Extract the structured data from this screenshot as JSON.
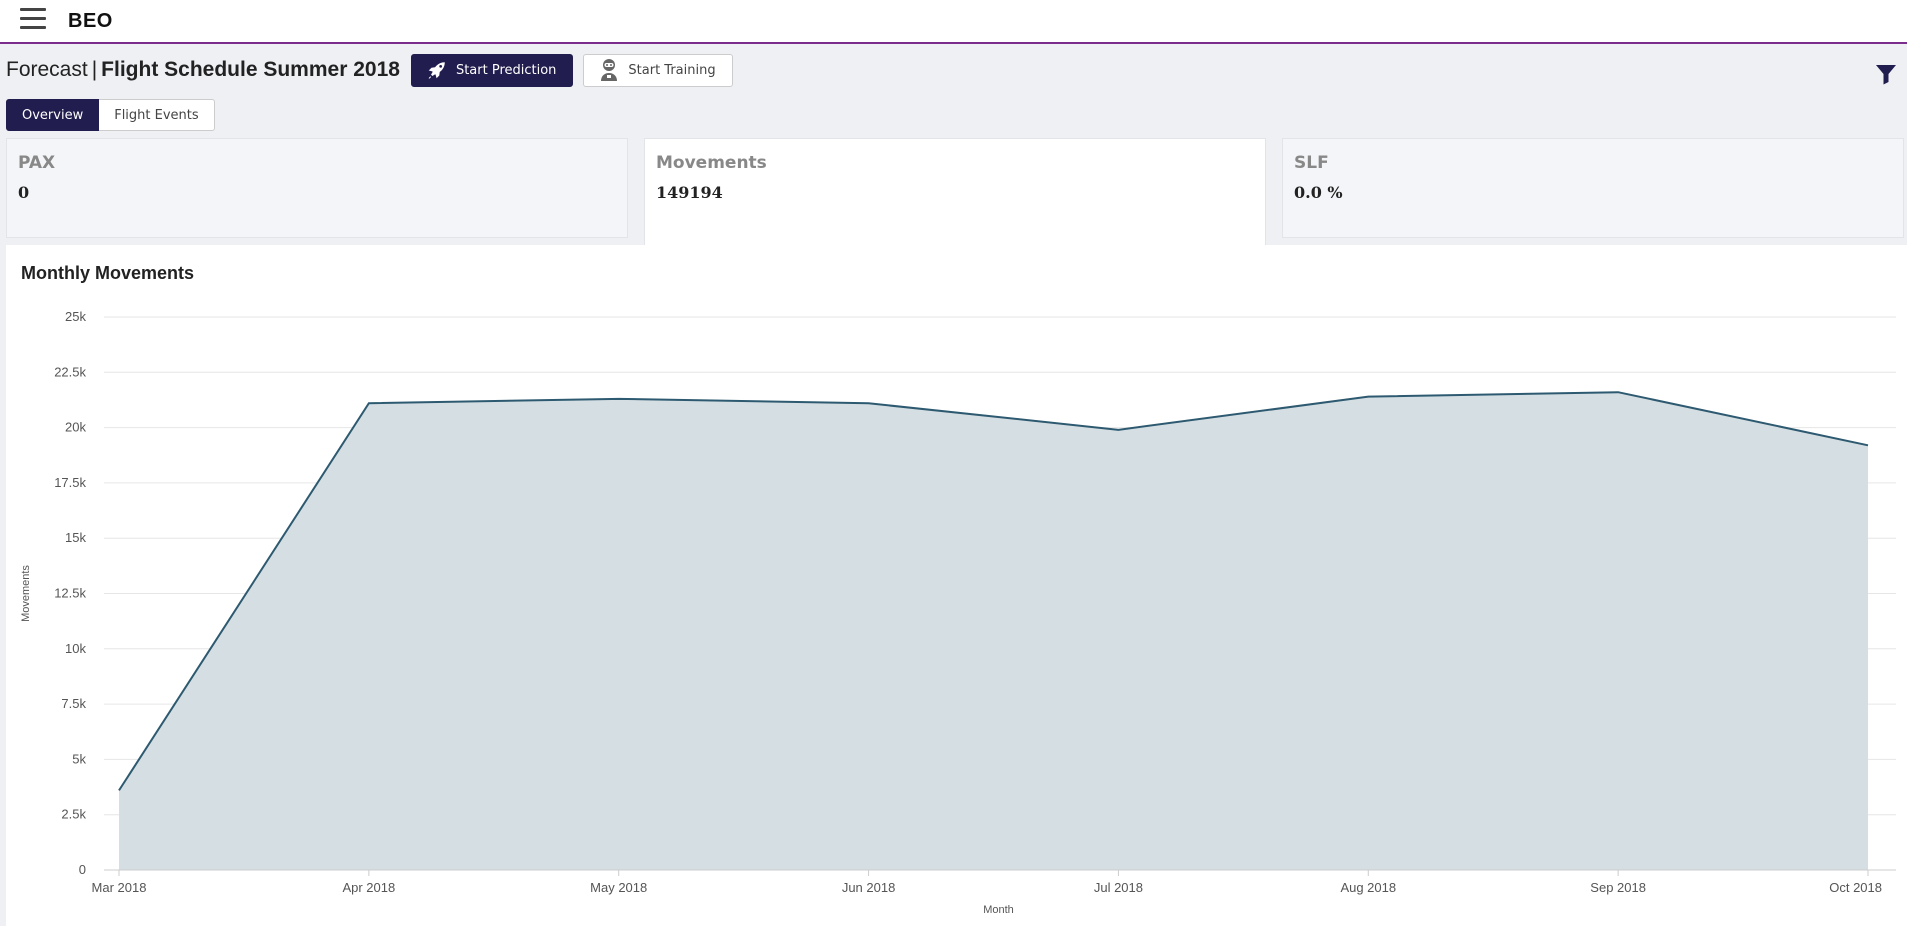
{
  "header": {
    "brand": "BEO",
    "menu_icon": "hamburger-menu-icon"
  },
  "page": {
    "title_prefix": "Forecast",
    "title_separator": "|",
    "title_main": "Flight Schedule Summer 2018"
  },
  "toolbar": {
    "start_prediction_label": "Start Prediction",
    "start_prediction_icon": "rocket-icon",
    "start_training_label": "Start Training",
    "start_training_icon": "robot-icon",
    "filter_icon": "filter-icon"
  },
  "tabs": [
    {
      "label": "Overview",
      "active": true
    },
    {
      "label": "Flight Events",
      "active": false
    }
  ],
  "kpis": [
    {
      "label": "PAX",
      "value": "0",
      "selected": false
    },
    {
      "label": "Movements",
      "value": "149194",
      "selected": true
    },
    {
      "label": "SLF",
      "value": "0.0 %",
      "selected": false
    }
  ],
  "chart": {
    "title": "Monthly Movements"
  },
  "chart_data": {
    "type": "area",
    "title": "Monthly Movements",
    "xlabel": "Month",
    "ylabel": "Movements",
    "categories": [
      "Mar 2018",
      "Apr 2018",
      "May 2018",
      "Jun 2018",
      "Jul 2018",
      "Aug 2018",
      "Sep 2018",
      "Oct 2018"
    ],
    "values": [
      3600,
      21100,
      21300,
      21100,
      19900,
      21400,
      21600,
      19200
    ],
    "ylim": [
      0,
      25000
    ],
    "yticks": [
      "0",
      "2.5k",
      "5k",
      "7.5k",
      "10k",
      "12.5k",
      "15k",
      "17.5k",
      "20k",
      "22.5k",
      "25k"
    ],
    "ytick_values": [
      0,
      2500,
      5000,
      7500,
      10000,
      12500,
      15000,
      17500,
      20000,
      22500,
      25000
    ],
    "grid": true,
    "legend": "none",
    "line_color": "#2d5a70",
    "fill_color": "#d5dee3"
  }
}
